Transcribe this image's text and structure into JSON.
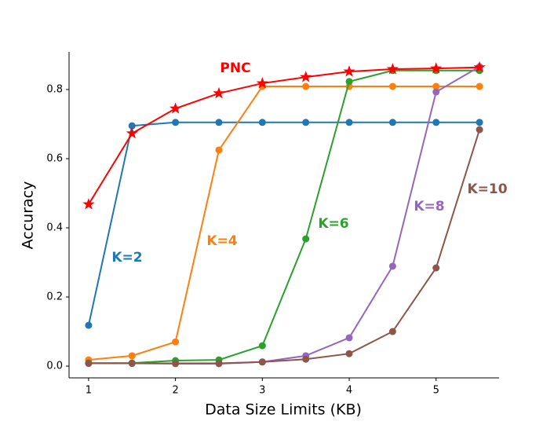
{
  "chart_data": {
    "type": "line",
    "x_label": "Data Size Limits (KB)",
    "y_label": "Accuracy",
    "x": [
      1,
      1.5,
      2,
      2.5,
      3,
      3.5,
      4,
      4.5,
      5,
      5.5
    ],
    "series": [
      {
        "name": "K=2",
        "color": "#1f77b4",
        "marker": "circle",
        "values": [
          0.118,
          0.695,
          0.705,
          0.705,
          0.705,
          0.705,
          0.705,
          0.705,
          0.705,
          0.705
        ]
      },
      {
        "name": "K=4",
        "color": "#ff7f0e",
        "marker": "circle",
        "values": [
          0.018,
          0.03,
          0.07,
          0.625,
          0.809,
          0.809,
          0.809,
          0.809,
          0.809,
          0.809
        ]
      },
      {
        "name": "K=6",
        "color": "#2ca02c",
        "marker": "circle",
        "values": [
          0.009,
          0.009,
          0.016,
          0.018,
          0.059,
          0.368,
          0.823,
          0.855,
          0.855,
          0.855
        ]
      },
      {
        "name": "K=8",
        "color": "#9467bd",
        "marker": "circle",
        "values": [
          0.008,
          0.008,
          0.007,
          0.007,
          0.012,
          0.03,
          0.082,
          0.289,
          0.793,
          0.866
        ]
      },
      {
        "name": "K=10",
        "color": "#8c564b",
        "marker": "circle",
        "values": [
          0.008,
          0.008,
          0.008,
          0.008,
          0.012,
          0.02,
          0.036,
          0.1,
          0.284,
          0.684
        ]
      },
      {
        "name": "PNC",
        "color": "#ff0000",
        "marker": "star",
        "values": [
          0.468,
          0.673,
          0.745,
          0.789,
          0.818,
          0.836,
          0.852,
          0.859,
          0.861,
          0.864
        ]
      }
    ],
    "xlim": [
      0.775,
      5.725
    ],
    "xticks": [
      1,
      2,
      3,
      4,
      5
    ],
    "ylim": [
      -0.034,
      0.909
    ],
    "yticks": [
      {
        "value": 0,
        "label": "0.0"
      },
      0.2,
      0.4,
      0.6,
      0.8
    ]
  }
}
